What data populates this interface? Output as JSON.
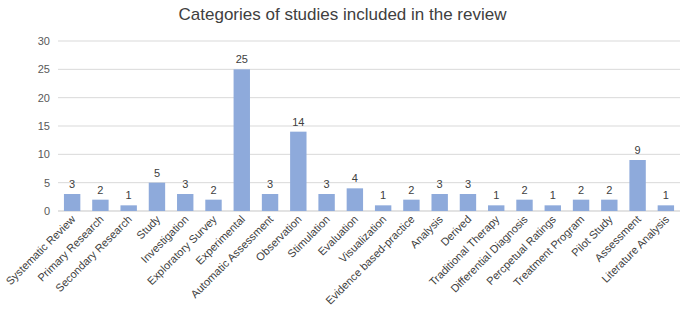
{
  "chart_data": {
    "type": "bar",
    "title": "Categories of studies included in the review",
    "categories": [
      "Systematic Review",
      "Primary Research",
      "Secondary Research",
      "Study",
      "Investigation",
      "Exploratory Survey",
      "Experimental",
      "Automatic Assessment",
      "Observation",
      "Stimulation",
      "Evaluation",
      "Visualization",
      "Evidence based-practice",
      "Analysis",
      "Derived",
      "Traditional Therapy",
      "Differential Diagnosis",
      "Percpetual Ratings",
      "Treatment Program",
      "Pilot Study",
      "Assessment",
      "Literature Analysis"
    ],
    "values": [
      3,
      2,
      1,
      5,
      3,
      2,
      25,
      3,
      14,
      3,
      4,
      1,
      2,
      3,
      3,
      1,
      2,
      1,
      2,
      2,
      9,
      1
    ],
    "color": "#8eaadb",
    "ylim": [
      0,
      30
    ],
    "yticks": [
      0,
      5,
      10,
      15,
      20,
      25,
      30
    ],
    "grid": true,
    "data_labels": true
  }
}
